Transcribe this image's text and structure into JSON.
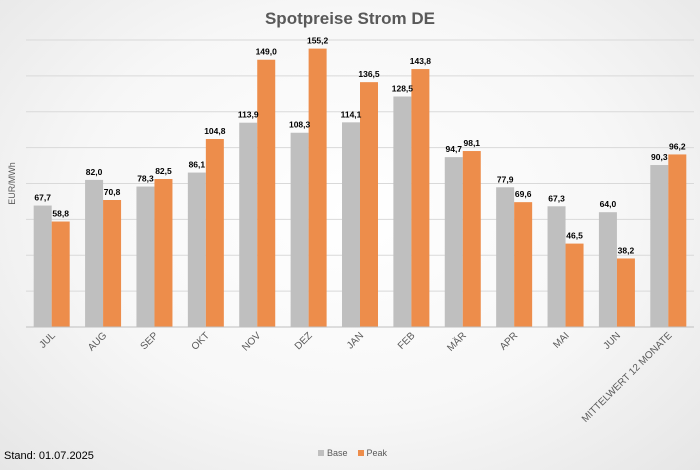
{
  "chart_data": {
    "type": "bar",
    "title": "Spotpreise Strom DE",
    "ylabel": "EUR/MWh",
    "ylim": [
      0,
      160
    ],
    "ytick_step": 20,
    "grid": true,
    "legend_position": "bottom",
    "categories": [
      "JUL",
      "AUG",
      "SEP",
      "OKT",
      "NOV",
      "DEZ",
      "JAN",
      "FEB",
      "MÄR",
      "APR",
      "MAI",
      "JUN",
      "MITTELWERT 12 MONATE"
    ],
    "series": [
      {
        "name": "Base",
        "color": "#bfbfbf",
        "values": [
          67.7,
          82.0,
          78.3,
          86.1,
          113.9,
          108.3,
          114.1,
          128.5,
          94.7,
          77.9,
          67.3,
          64.0,
          90.3
        ],
        "labels": [
          "67,7",
          "82,0",
          "78,3",
          "86,1",
          "113,9",
          "108,3",
          "114,1",
          "128,5",
          "94,7",
          "77,9",
          "67,3",
          "64,0",
          "90,3"
        ]
      },
      {
        "name": "Peak",
        "color": "#ed8d4b",
        "values": [
          58.8,
          70.8,
          82.5,
          104.8,
          149.0,
          155.2,
          136.5,
          143.8,
          98.1,
          69.6,
          46.5,
          38.2,
          96.2
        ],
        "labels": [
          "58,8",
          "70,8",
          "82,5",
          "104,8",
          "149,0",
          "155,2",
          "136,5",
          "143,8",
          "98,1",
          "69,6",
          "46,5",
          "38,2",
          "96,2"
        ]
      }
    ]
  },
  "footer": {
    "note": "Stand: 01.07.2025"
  }
}
